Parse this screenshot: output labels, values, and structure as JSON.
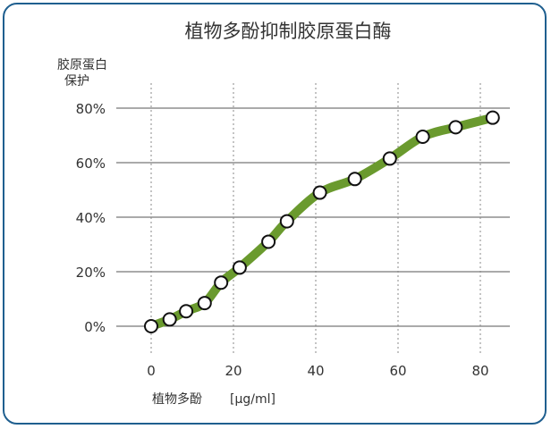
{
  "chart_data": {
    "type": "line",
    "title": "植物多酚抑制胶原蛋白酶",
    "ylabel_lines": [
      "胶原蛋白",
      "保护"
    ],
    "xlabel": "植物多酚",
    "xunit": "[µg/ml]",
    "xlim": [
      0,
      84
    ],
    "ylim": [
      0,
      80
    ],
    "x_ticks": [
      0,
      20,
      40,
      60,
      80
    ],
    "y_ticks": [
      0,
      20,
      40,
      60,
      80
    ],
    "y_tick_labels": [
      "0%",
      "20%",
      "40%",
      "60%",
      "80%"
    ],
    "grid": {
      "y": "solid",
      "x": "dotted"
    },
    "series": [
      {
        "color": "#6a9a2e",
        "marker": "open-circle",
        "x": [
          0,
          4.5,
          8.5,
          13,
          17,
          21.5,
          28.5,
          33,
          41,
          49.5,
          58,
          66,
          74,
          83
        ],
        "y": [
          0,
          2.5,
          5.5,
          8.5,
          16,
          21.5,
          31,
          38.5,
          49,
          54,
          61.5,
          69.5,
          73,
          76.5
        ]
      }
    ]
  }
}
